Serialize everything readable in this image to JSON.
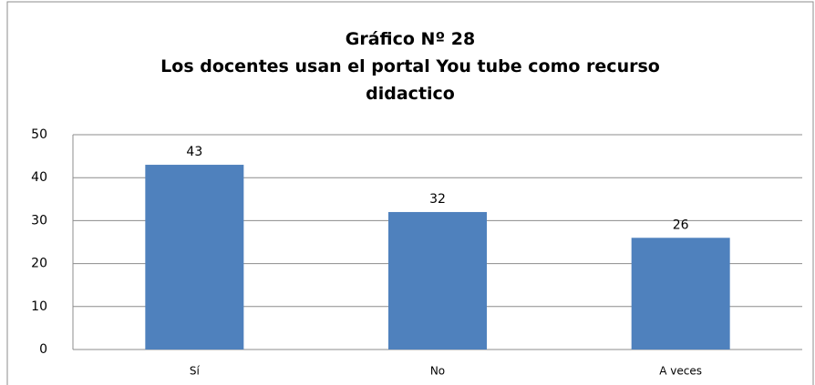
{
  "chart_data": {
    "type": "bar",
    "title": "Gráfico Nº 28",
    "subtitle": "Los docentes usan el portal You tube como recurso didactico",
    "categories": [
      "Sí",
      "No",
      "A veces"
    ],
    "values": [
      43,
      32,
      26
    ],
    "color": "#4f81bd",
    "ylim": [
      0,
      50
    ],
    "yticks": [
      0,
      10,
      20,
      30,
      40,
      50
    ],
    "grid": true
  }
}
